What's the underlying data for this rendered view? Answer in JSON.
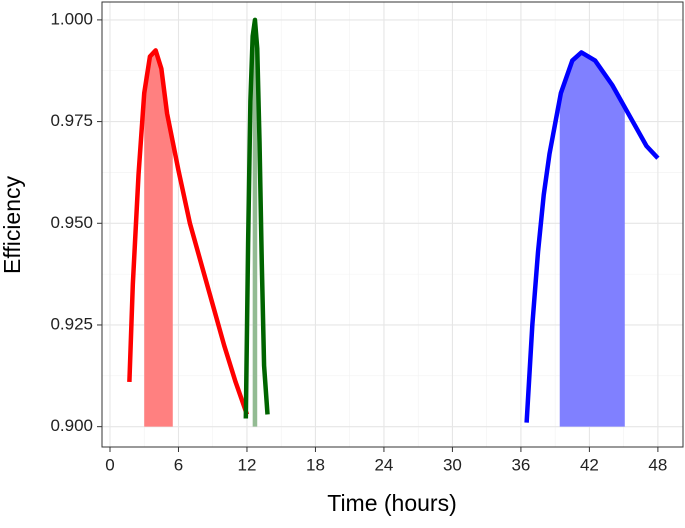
{
  "chart_data": {
    "type": "line",
    "x_label": "Time (hours)",
    "y_label": "Efficiency",
    "xlim": [
      -0.7,
      50.2
    ],
    "xticks": [
      0,
      6,
      12,
      18,
      24,
      30,
      36,
      42,
      48
    ],
    "ylim": [
      0.895,
      1.0044
    ],
    "yticks": [
      {
        "value": 0.9,
        "label": "0.900"
      },
      {
        "value": 0.925,
        "label": "0.925"
      },
      {
        "value": 0.95,
        "label": "0.950"
      },
      {
        "value": 0.975,
        "label": "0.975"
      },
      {
        "value": 1.0,
        "label": "1.000"
      }
    ],
    "grid": true,
    "series": [
      {
        "color": "#ff0000",
        "shade_color": "#ff8080",
        "shade": [
          3,
          5.5
        ],
        "x": [
          1.7,
          2,
          2.5,
          3,
          3.5,
          4,
          4.5,
          5,
          6,
          7,
          8,
          9,
          10,
          11,
          12
        ],
        "values": [
          0.911,
          0.935,
          0.962,
          0.982,
          0.991,
          0.9925,
          0.988,
          0.977,
          0.963,
          0.95,
          0.94,
          0.93,
          0.92,
          0.911,
          0.903
        ]
      },
      {
        "color": "#006400",
        "shade_color": "#93bb93",
        "shade": [
          12.5,
          12.9
        ],
        "x": [
          11.9,
          12.1,
          12.3,
          12.5,
          12.7,
          12.9,
          13.1,
          13.3,
          13.5,
          13.8
        ],
        "values": [
          0.902,
          0.945,
          0.98,
          0.996,
          1.0,
          0.993,
          0.97,
          0.94,
          0.915,
          0.903
        ]
      },
      {
        "color": "#0000ff",
        "shade_color": "#8080ff",
        "shade": [
          39.4,
          45.1
        ],
        "x": [
          36.5,
          37,
          37.5,
          38,
          38.5,
          39.5,
          40.5,
          41.3,
          42.5,
          44,
          45,
          46,
          47,
          48
        ],
        "values": [
          0.901,
          0.925,
          0.943,
          0.957,
          0.967,
          0.982,
          0.99,
          0.992,
          0.99,
          0.984,
          0.979,
          0.974,
          0.969,
          0.966
        ]
      }
    ]
  }
}
